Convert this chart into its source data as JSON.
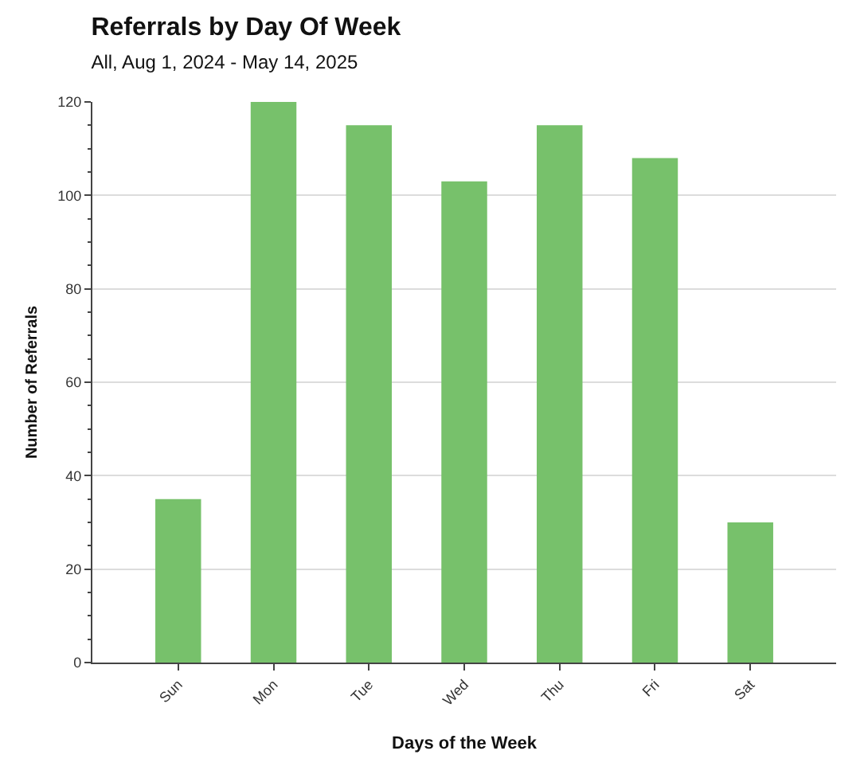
{
  "chart_data": {
    "type": "bar",
    "title": "Referrals by Day Of Week",
    "subtitle": "All, Aug 1, 2024 - May 14, 2025",
    "xlabel": "Days of the Week",
    "ylabel": "Number of Referrals",
    "categories": [
      "Sun",
      "Mon",
      "Tue",
      "Wed",
      "Thu",
      "Fri",
      "Sat"
    ],
    "values": [
      35,
      120,
      115,
      103,
      115,
      108,
      30
    ],
    "color": "#77c16b",
    "ylim": [
      0,
      120
    ],
    "yticks": [
      0,
      20,
      40,
      60,
      80,
      100,
      120
    ],
    "grid": "y"
  }
}
